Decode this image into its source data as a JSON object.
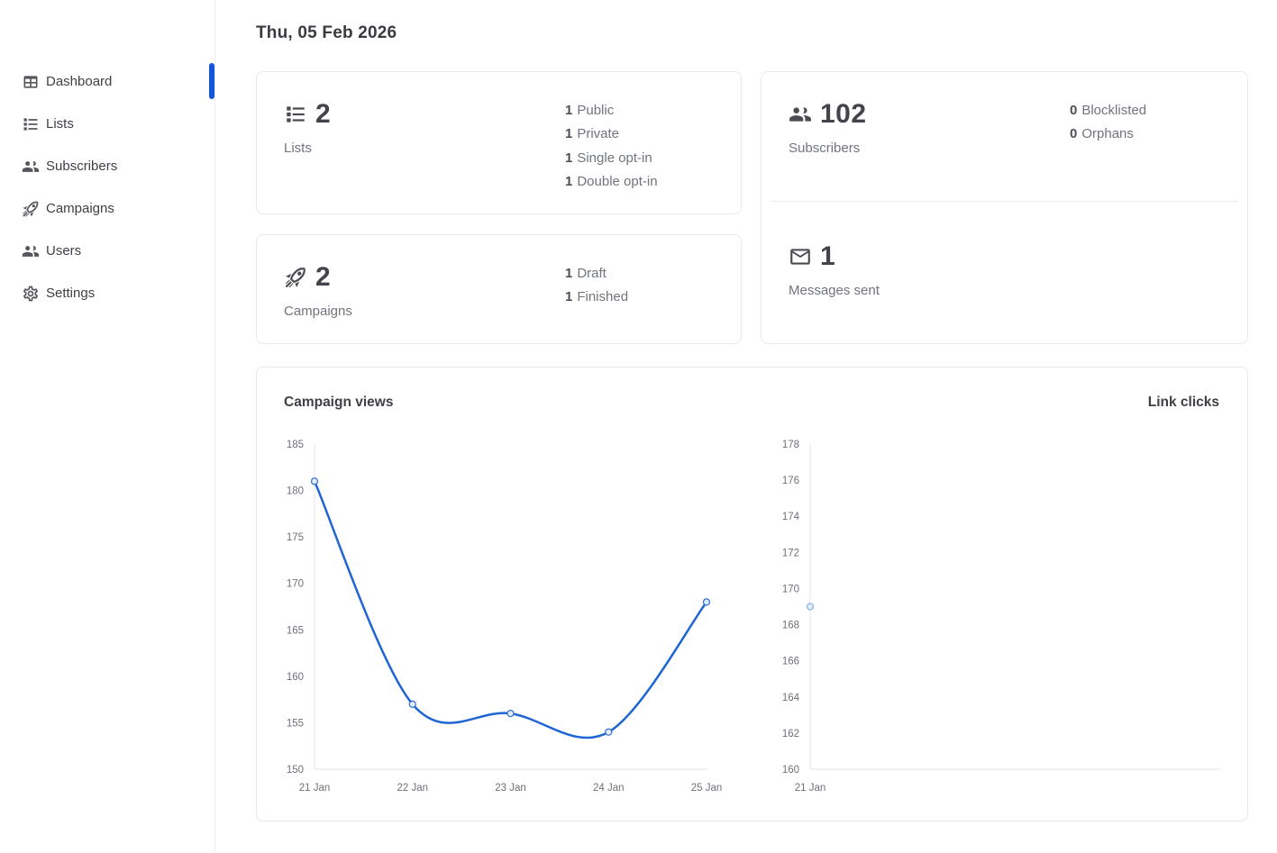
{
  "header": {
    "date": "Thu, 05 Feb 2026"
  },
  "sidebar": {
    "items": [
      {
        "label": "Dashboard",
        "icon": "dashboard-icon",
        "active": true
      },
      {
        "label": "Lists",
        "icon": "lists-icon",
        "active": false
      },
      {
        "label": "Subscribers",
        "icon": "subscribers-icon",
        "active": false
      },
      {
        "label": "Campaigns",
        "icon": "campaigns-icon",
        "active": false
      },
      {
        "label": "Users",
        "icon": "users-icon",
        "active": false
      },
      {
        "label": "Settings",
        "icon": "settings-icon",
        "active": false
      }
    ]
  },
  "cards": {
    "lists": {
      "count": "2",
      "label": "Lists",
      "stats": [
        {
          "value": "1",
          "label": "Public"
        },
        {
          "value": "1",
          "label": "Private"
        },
        {
          "value": "1",
          "label": "Single opt-in"
        },
        {
          "value": "1",
          "label": "Double opt-in"
        }
      ]
    },
    "campaigns": {
      "count": "2",
      "label": "Campaigns",
      "stats": [
        {
          "value": "1",
          "label": "Draft"
        },
        {
          "value": "1",
          "label": "Finished"
        }
      ]
    },
    "subscribers": {
      "count": "102",
      "label": "Subscribers",
      "stats": [
        {
          "value": "0",
          "label": "Blocklisted"
        },
        {
          "value": "0",
          "label": "Orphans"
        }
      ]
    },
    "messages": {
      "count": "1",
      "label": "Messages sent"
    }
  },
  "charts": {
    "left_title": "Campaign views",
    "right_title": "Link clicks"
  },
  "chart_data": [
    {
      "type": "line",
      "title": "Campaign views",
      "x": [
        "21 Jan",
        "22 Jan",
        "23 Jan",
        "24 Jan",
        "25 Jan"
      ],
      "values": [
        181,
        157,
        156,
        154,
        168
      ],
      "ylim": [
        150,
        185
      ],
      "ytick_step": 5,
      "smooth": true,
      "grid": false,
      "legend_position": "none"
    },
    {
      "type": "line",
      "title": "Link clicks",
      "x": [
        "21 Jan"
      ],
      "values": [
        169
      ],
      "ylim": [
        160,
        178
      ],
      "ytick_step": 2,
      "smooth": true,
      "grid": false,
      "legend_position": "none"
    }
  ],
  "colors": {
    "accent": "#1356d6",
    "chart_line": "#2065d4",
    "marker_stroke": "#3a74d2",
    "marker_stroke_light": "#8fb0e4",
    "marker_fill": "#e3ecfa",
    "axis_line": "#e0e3e9",
    "tick_text": "#6e7079",
    "text_dark": "#3f3f46",
    "text_gray": "#70747c",
    "card_border": "#e8e8ec"
  }
}
